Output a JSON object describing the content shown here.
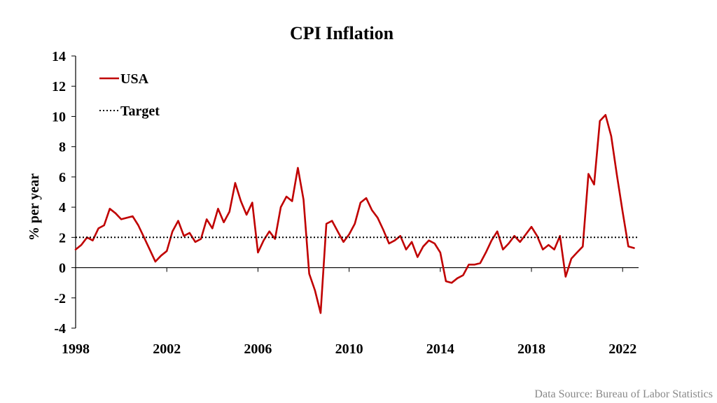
{
  "chart_data": {
    "type": "line",
    "title": "CPI Inflation",
    "ylabel": "% per year",
    "xlabel": "",
    "source": "Data Source: Bureau of Labor Statistics",
    "ylim": [
      -4,
      14
    ],
    "xlim": [
      1998,
      2022.7
    ],
    "y_ticks": [
      -4,
      -2,
      0,
      2,
      4,
      6,
      8,
      10,
      12,
      14
    ],
    "x_ticks": [
      1998,
      2002,
      2006,
      2010,
      2014,
      2018,
      2022
    ],
    "grid": false,
    "legend_position": "top-left",
    "series": [
      {
        "name": "USA",
        "color": "#c00000",
        "style": "solid",
        "x": [
          1998.0,
          1998.25,
          1998.5,
          1998.75,
          1999.0,
          1999.25,
          1999.5,
          1999.75,
          2000.0,
          2000.25,
          2000.5,
          2000.75,
          2001.0,
          2001.25,
          2001.5,
          2001.75,
          2002.0,
          2002.25,
          2002.5,
          2002.75,
          2003.0,
          2003.25,
          2003.5,
          2003.75,
          2004.0,
          2004.25,
          2004.5,
          2004.75,
          2005.0,
          2005.25,
          2005.5,
          2005.75,
          2006.0,
          2006.25,
          2006.5,
          2006.75,
          2007.0,
          2007.25,
          2007.5,
          2007.75,
          2008.0,
          2008.25,
          2008.5,
          2008.75,
          2009.0,
          2009.25,
          2009.5,
          2009.75,
          2010.0,
          2010.25,
          2010.5,
          2010.75,
          2011.0,
          2011.25,
          2011.5,
          2011.75,
          2012.0,
          2012.25,
          2012.5,
          2012.75,
          2013.0,
          2013.25,
          2013.5,
          2013.75,
          2014.0,
          2014.25,
          2014.5,
          2014.75,
          2015.0,
          2015.25,
          2015.5,
          2015.75,
          2016.0,
          2016.25,
          2016.5,
          2016.75,
          2017.0,
          2017.25,
          2017.5,
          2017.75,
          2018.0,
          2018.25,
          2018.5,
          2018.75,
          2019.0,
          2019.25,
          2019.5,
          2019.75,
          2020.0,
          2020.25,
          2020.5,
          2020.75,
          2021.0,
          2021.25,
          2021.5,
          2021.75,
          2022.0,
          2022.25,
          2022.5
        ],
        "values": [
          1.2,
          1.5,
          2.0,
          1.8,
          2.6,
          2.8,
          3.9,
          3.6,
          3.2,
          3.3,
          3.4,
          2.8,
          2.0,
          1.2,
          0.4,
          0.8,
          1.1,
          2.4,
          3.1,
          2.1,
          2.3,
          1.7,
          1.9,
          3.2,
          2.6,
          3.9,
          3.0,
          3.7,
          5.6,
          4.4,
          3.5,
          4.3,
          1.0,
          1.8,
          2.4,
          1.9,
          4.0,
          4.7,
          4.4,
          6.6,
          4.5,
          -0.4,
          -1.5,
          -3.0,
          2.9,
          3.1,
          2.4,
          1.7,
          2.2,
          2.9,
          4.3,
          4.6,
          3.8,
          3.3,
          2.5,
          1.6,
          1.8,
          2.1,
          1.2,
          1.7,
          0.7,
          1.4,
          1.8,
          1.6,
          1.0,
          -0.9,
          -1.0,
          -0.7,
          -0.5,
          0.2,
          0.2,
          0.3,
          1.0,
          1.8,
          2.4,
          1.2,
          1.6,
          2.1,
          1.7,
          2.2,
          2.7,
          2.1,
          1.2,
          1.5,
          1.2,
          2.1,
          -0.6,
          0.6,
          1.0,
          1.4,
          6.2,
          5.5,
          9.7,
          10.1,
          8.7,
          6.1,
          3.7,
          1.4,
          1.3
        ]
      },
      {
        "name": "Target",
        "color": "#000000",
        "style": "dotted",
        "x": [
          1998.0,
          2022.7
        ],
        "values": [
          2,
          2
        ]
      }
    ]
  }
}
